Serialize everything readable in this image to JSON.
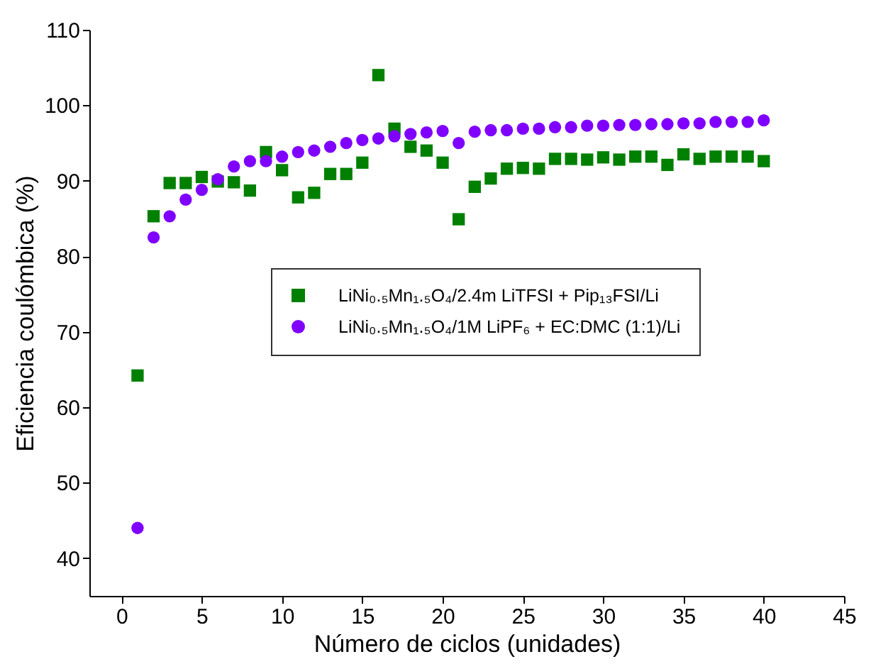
{
  "chart_data": {
    "type": "scatter",
    "xlabel": "Número de ciclos (unidades)",
    "ylabel": "Eficiencia coulómbica (%)",
    "xlim": [
      -2,
      45
    ],
    "xticks": [
      0,
      5,
      10,
      15,
      20,
      25,
      30,
      35,
      40,
      45
    ],
    "ylim": [
      35,
      110
    ],
    "yticks": [
      40,
      50,
      60,
      70,
      80,
      90,
      100,
      110
    ],
    "x": [
      1,
      2,
      3,
      4,
      5,
      6,
      7,
      8,
      9,
      10,
      11,
      12,
      13,
      14,
      15,
      16,
      17,
      18,
      19,
      20,
      21,
      22,
      23,
      24,
      25,
      26,
      27,
      28,
      29,
      30,
      31,
      32,
      33,
      34,
      35,
      36,
      37,
      38,
      39,
      40
    ],
    "series": [
      {
        "name": "LiNi₀.₅Mn₁.₅O₄/2.4m LiTFSI + Pip₁₃FSI/Li",
        "color": "#008000",
        "marker": "square",
        "values": [
          64.2,
          85.3,
          89.7,
          89.7,
          90.5,
          89.9,
          89.8,
          88.7,
          93.8,
          91.4,
          87.8,
          88.4,
          90.9,
          90.9,
          92.4,
          104,
          96.9,
          94.5,
          94,
          92.4,
          84.9,
          89.2,
          90.3,
          91.6,
          91.7,
          91.6,
          92.9,
          92.9,
          92.8,
          93.1,
          92.8,
          93.2,
          93.2,
          92.1,
          93.5,
          92.9,
          93.2,
          93.2,
          93.2,
          92.6
        ]
      },
      {
        "name": "LiNi₀.₅Mn₁.₅O₄/1M LiPF₆ + EC:DMC (1:1)/Li",
        "color": "#8000ff",
        "marker": "circle",
        "values": [
          44,
          82.5,
          85.3,
          87.5,
          88.8,
          90.2,
          91.9,
          92.6,
          92.6,
          93.2,
          93.8,
          94,
          94.5,
          95,
          95.4,
          95.6,
          95.9,
          96.2,
          96.4,
          96.6,
          95,
          96.5,
          96.7,
          96.7,
          96.9,
          96.9,
          97.1,
          97.1,
          97.3,
          97.3,
          97.4,
          97.4,
          97.5,
          97.5,
          97.6,
          97.6,
          97.8,
          97.8,
          97.8,
          98
        ]
      }
    ],
    "grid": false,
    "legend": "right"
  }
}
